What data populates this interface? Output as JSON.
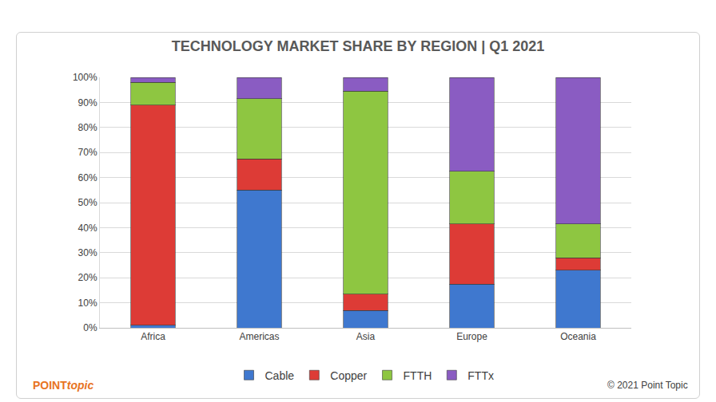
{
  "chart_data": {
    "type": "bar",
    "title": "TECHNOLOGY MARKET SHARE BY REGION | Q1 2021",
    "categories": [
      "Africa",
      "Americas",
      "Asia",
      "Europe",
      "Oceania"
    ],
    "stacked": true,
    "grid": true,
    "legend": "bottom",
    "series": [
      {
        "name": "Cable",
        "color": "#3f78cf",
        "values": [
          1,
          55,
          7,
          17.5,
          23
        ]
      },
      {
        "name": "Copper",
        "color": "#dd3b36",
        "values": [
          88,
          12.5,
          6.5,
          24,
          5
        ]
      },
      {
        "name": "FTTH",
        "color": "#8ec641",
        "values": [
          9,
          24,
          81,
          21,
          13.5
        ]
      },
      {
        "name": "FTTx",
        "color": "#8a5cc2",
        "values": [
          2,
          8.5,
          5.5,
          37.5,
          58.5
        ]
      }
    ],
    "ylim": [
      0,
      100
    ],
    "yticks": [
      {
        "value": 0,
        "label": "0%"
      },
      {
        "value": 10,
        "label": "10%"
      },
      {
        "value": 20,
        "label": "20%"
      },
      {
        "value": 30,
        "label": "30%"
      },
      {
        "value": 40,
        "label": "40%"
      },
      {
        "value": 50,
        "label": "50%"
      },
      {
        "value": 60,
        "label": "60%"
      },
      {
        "value": 70,
        "label": "70%"
      },
      {
        "value": 80,
        "label": "80%"
      },
      {
        "value": 90,
        "label": "90%"
      },
      {
        "value": 100,
        "label": "100%"
      }
    ],
    "annotations": [
      "POINT topic",
      "© 2021 Point Topic"
    ]
  }
}
